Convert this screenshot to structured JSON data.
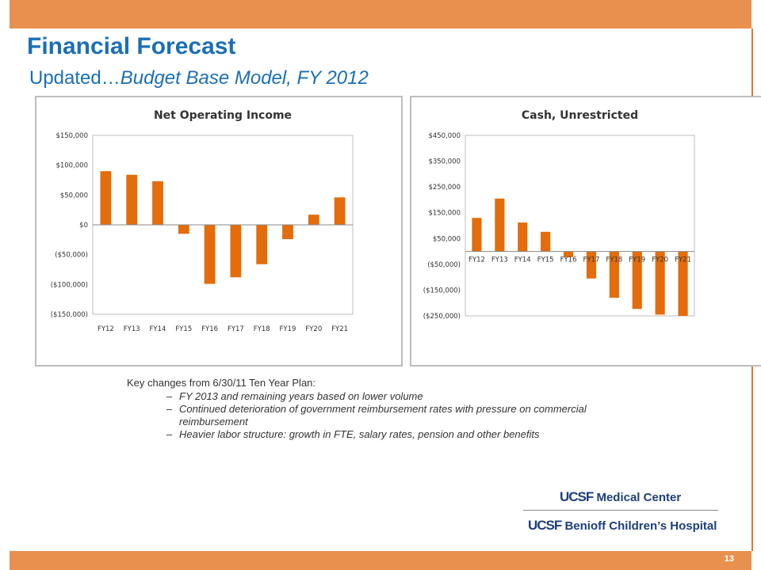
{
  "slide": {
    "title": "Financial Forecast",
    "subtitle_plain": "Updated…",
    "subtitle_italic": "Budget Base Model, FY 2012",
    "page_number": "13"
  },
  "notes": {
    "heading": "Key changes from 6/30/11 Ten Year Plan:",
    "items": [
      "FY 2013 and remaining years based on lower volume",
      "Continued deterioration of government reimbursement rates with pressure on commercial reimbursement",
      "Heavier labor structure:  growth in FTE, salary rates, pension and other benefits"
    ],
    "bullet": "–"
  },
  "logo": {
    "line1_mark": "UCSF",
    "line1_text": "Medical Center",
    "line2_mark": "UCSF",
    "line2_text": "Benioff Children’s Hospital"
  },
  "colors": {
    "accent": "#1B6FB5",
    "bar": "#E46C0A",
    "banner": "#E8914E"
  },
  "chart_data": [
    {
      "type": "bar",
      "title": "Net Operating Income",
      "categories": [
        "FY12",
        "FY13",
        "FY14",
        "FY15",
        "FY16",
        "FY17",
        "FY18",
        "FY19",
        "FY20",
        "FY21"
      ],
      "values": [
        90000,
        84000,
        73000,
        -15000,
        -99000,
        -88000,
        -66000,
        -24000,
        17000,
        46000
      ],
      "ylim": [
        -150000,
        150000
      ],
      "yticks": [
        150000,
        100000,
        50000,
        0,
        -50000,
        -100000,
        -150000
      ],
      "ytick_labels": [
        "$150,000",
        "$100,000",
        "$50,000",
        "$0",
        "($50,000)",
        "($100,000)",
        "($150,000)"
      ],
      "category_axis": "bottom",
      "grid": false,
      "legend": "none"
    },
    {
      "type": "bar",
      "title": "Cash, Unrestricted",
      "categories": [
        "FY12",
        "FY13",
        "FY14",
        "FY15",
        "FY16",
        "FY17",
        "FY18",
        "FY19",
        "FY20",
        "FY21"
      ],
      "values": [
        130000,
        205000,
        112000,
        76000,
        -22000,
        -105000,
        -180000,
        -223000,
        -245000,
        -250000
      ],
      "ylim": [
        -250000,
        450000
      ],
      "yticks": [
        450000,
        350000,
        250000,
        150000,
        50000,
        -50000,
        -150000,
        -250000
      ],
      "ytick_labels": [
        "$450,000",
        "$350,000",
        "$250,000",
        "$150,000",
        "$50,000",
        "($50,000)",
        "($150,000)",
        "($250,000)"
      ],
      "category_axis": "zero",
      "grid": false,
      "legend": "none"
    }
  ]
}
